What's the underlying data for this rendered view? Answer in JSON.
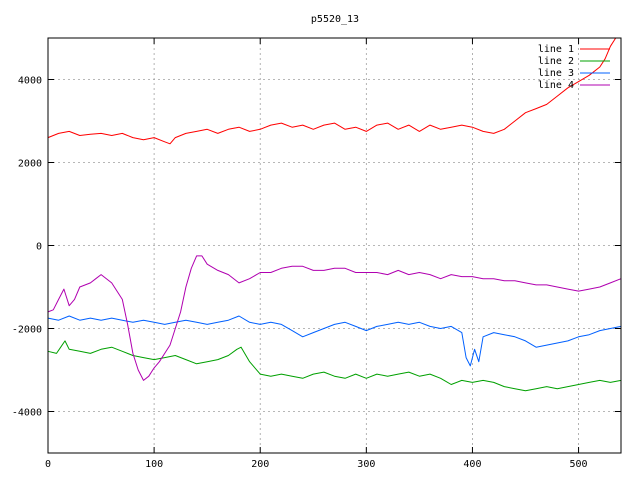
{
  "chart_data": {
    "type": "line",
    "title": "p5520_13",
    "xlabel": "",
    "ylabel": "",
    "xlim": [
      0,
      540
    ],
    "ylim": [
      -5000,
      5000
    ],
    "xticks": [
      0,
      100,
      200,
      300,
      400,
      500
    ],
    "yticks": [
      -4000,
      -2000,
      0,
      2000,
      4000
    ],
    "grid": true,
    "legend_position": "top-right",
    "series": [
      {
        "name": "line 1",
        "color": "#ff0000",
        "points": [
          [
            0,
            2600
          ],
          [
            10,
            2700
          ],
          [
            20,
            2750
          ],
          [
            30,
            2650
          ],
          [
            40,
            2680
          ],
          [
            50,
            2700
          ],
          [
            60,
            2650
          ],
          [
            70,
            2700
          ],
          [
            80,
            2600
          ],
          [
            90,
            2550
          ],
          [
            100,
            2600
          ],
          [
            110,
            2500
          ],
          [
            115,
            2450
          ],
          [
            120,
            2600
          ],
          [
            130,
            2700
          ],
          [
            140,
            2750
          ],
          [
            150,
            2800
          ],
          [
            160,
            2700
          ],
          [
            170,
            2800
          ],
          [
            180,
            2850
          ],
          [
            190,
            2750
          ],
          [
            200,
            2800
          ],
          [
            210,
            2900
          ],
          [
            220,
            2950
          ],
          [
            230,
            2850
          ],
          [
            240,
            2900
          ],
          [
            250,
            2800
          ],
          [
            260,
            2900
          ],
          [
            270,
            2950
          ],
          [
            280,
            2800
          ],
          [
            290,
            2850
          ],
          [
            300,
            2750
          ],
          [
            310,
            2900
          ],
          [
            320,
            2950
          ],
          [
            330,
            2800
          ],
          [
            340,
            2900
          ],
          [
            350,
            2750
          ],
          [
            360,
            2900
          ],
          [
            370,
            2800
          ],
          [
            380,
            2850
          ],
          [
            390,
            2900
          ],
          [
            400,
            2850
          ],
          [
            410,
            2750
          ],
          [
            420,
            2700
          ],
          [
            430,
            2800
          ],
          [
            440,
            3000
          ],
          [
            450,
            3200
          ],
          [
            460,
            3300
          ],
          [
            470,
            3400
          ],
          [
            480,
            3600
          ],
          [
            490,
            3800
          ],
          [
            500,
            3950
          ],
          [
            510,
            4100
          ],
          [
            520,
            4300
          ],
          [
            525,
            4500
          ],
          [
            530,
            4800
          ],
          [
            535,
            5000
          ]
        ]
      },
      {
        "name": "line 2",
        "color": "#00a000",
        "points": [
          [
            0,
            -2550
          ],
          [
            8,
            -2600
          ],
          [
            12,
            -2450
          ],
          [
            16,
            -2300
          ],
          [
            20,
            -2500
          ],
          [
            30,
            -2550
          ],
          [
            40,
            -2600
          ],
          [
            50,
            -2500
          ],
          [
            60,
            -2450
          ],
          [
            70,
            -2550
          ],
          [
            80,
            -2650
          ],
          [
            90,
            -2700
          ],
          [
            100,
            -2750
          ],
          [
            110,
            -2700
          ],
          [
            120,
            -2650
          ],
          [
            130,
            -2750
          ],
          [
            140,
            -2850
          ],
          [
            150,
            -2800
          ],
          [
            160,
            -2750
          ],
          [
            170,
            -2650
          ],
          [
            178,
            -2500
          ],
          [
            182,
            -2450
          ],
          [
            190,
            -2800
          ],
          [
            200,
            -3100
          ],
          [
            210,
            -3150
          ],
          [
            220,
            -3100
          ],
          [
            230,
            -3150
          ],
          [
            240,
            -3200
          ],
          [
            250,
            -3100
          ],
          [
            260,
            -3050
          ],
          [
            270,
            -3150
          ],
          [
            280,
            -3200
          ],
          [
            290,
            -3100
          ],
          [
            300,
            -3200
          ],
          [
            310,
            -3100
          ],
          [
            320,
            -3150
          ],
          [
            330,
            -3100
          ],
          [
            340,
            -3050
          ],
          [
            350,
            -3150
          ],
          [
            360,
            -3100
          ],
          [
            370,
            -3200
          ],
          [
            380,
            -3350
          ],
          [
            390,
            -3250
          ],
          [
            400,
            -3300
          ],
          [
            410,
            -3250
          ],
          [
            420,
            -3300
          ],
          [
            430,
            -3400
          ],
          [
            440,
            -3450
          ],
          [
            450,
            -3500
          ],
          [
            460,
            -3450
          ],
          [
            470,
            -3400
          ],
          [
            480,
            -3450
          ],
          [
            490,
            -3400
          ],
          [
            500,
            -3350
          ],
          [
            510,
            -3300
          ],
          [
            520,
            -3250
          ],
          [
            530,
            -3300
          ],
          [
            540,
            -3250
          ]
        ]
      },
      {
        "name": "line 3",
        "color": "#0060ff",
        "points": [
          [
            0,
            -1750
          ],
          [
            10,
            -1800
          ],
          [
            20,
            -1700
          ],
          [
            30,
            -1800
          ],
          [
            40,
            -1750
          ],
          [
            50,
            -1800
          ],
          [
            60,
            -1750
          ],
          [
            70,
            -1800
          ],
          [
            80,
            -1850
          ],
          [
            90,
            -1800
          ],
          [
            100,
            -1850
          ],
          [
            110,
            -1900
          ],
          [
            120,
            -1850
          ],
          [
            130,
            -1800
          ],
          [
            140,
            -1850
          ],
          [
            150,
            -1900
          ],
          [
            160,
            -1850
          ],
          [
            170,
            -1800
          ],
          [
            180,
            -1700
          ],
          [
            190,
            -1850
          ],
          [
            200,
            -1900
          ],
          [
            210,
            -1850
          ],
          [
            220,
            -1900
          ],
          [
            230,
            -2050
          ],
          [
            240,
            -2200
          ],
          [
            250,
            -2100
          ],
          [
            260,
            -2000
          ],
          [
            270,
            -1900
          ],
          [
            280,
            -1850
          ],
          [
            290,
            -1950
          ],
          [
            300,
            -2050
          ],
          [
            310,
            -1950
          ],
          [
            320,
            -1900
          ],
          [
            330,
            -1850
          ],
          [
            340,
            -1900
          ],
          [
            350,
            -1850
          ],
          [
            360,
            -1950
          ],
          [
            370,
            -2000
          ],
          [
            380,
            -1950
          ],
          [
            390,
            -2100
          ],
          [
            394,
            -2700
          ],
          [
            398,
            -2900
          ],
          [
            402,
            -2500
          ],
          [
            406,
            -2800
          ],
          [
            410,
            -2200
          ],
          [
            420,
            -2100
          ],
          [
            430,
            -2150
          ],
          [
            440,
            -2200
          ],
          [
            450,
            -2300
          ],
          [
            460,
            -2450
          ],
          [
            470,
            -2400
          ],
          [
            480,
            -2350
          ],
          [
            490,
            -2300
          ],
          [
            500,
            -2200
          ],
          [
            510,
            -2150
          ],
          [
            520,
            -2050
          ],
          [
            530,
            -2000
          ],
          [
            540,
            -1950
          ]
        ]
      },
      {
        "name": "line 4",
        "color": "#b000b0",
        "points": [
          [
            0,
            -1600
          ],
          [
            5,
            -1550
          ],
          [
            10,
            -1300
          ],
          [
            15,
            -1050
          ],
          [
            20,
            -1450
          ],
          [
            25,
            -1300
          ],
          [
            30,
            -1000
          ],
          [
            40,
            -900
          ],
          [
            45,
            -800
          ],
          [
            50,
            -700
          ],
          [
            60,
            -900
          ],
          [
            65,
            -1100
          ],
          [
            70,
            -1300
          ],
          [
            75,
            -1900
          ],
          [
            80,
            -2600
          ],
          [
            85,
            -3000
          ],
          [
            90,
            -3250
          ],
          [
            95,
            -3150
          ],
          [
            100,
            -2950
          ],
          [
            105,
            -2800
          ],
          [
            110,
            -2600
          ],
          [
            115,
            -2400
          ],
          [
            120,
            -2000
          ],
          [
            125,
            -1600
          ],
          [
            130,
            -1000
          ],
          [
            135,
            -550
          ],
          [
            140,
            -250
          ],
          [
            145,
            -250
          ],
          [
            150,
            -450
          ],
          [
            160,
            -600
          ],
          [
            170,
            -700
          ],
          [
            180,
            -900
          ],
          [
            190,
            -800
          ],
          [
            200,
            -650
          ],
          [
            210,
            -650
          ],
          [
            220,
            -550
          ],
          [
            230,
            -500
          ],
          [
            240,
            -500
          ],
          [
            250,
            -600
          ],
          [
            260,
            -600
          ],
          [
            270,
            -550
          ],
          [
            280,
            -550
          ],
          [
            290,
            -650
          ],
          [
            300,
            -650
          ],
          [
            310,
            -650
          ],
          [
            320,
            -700
          ],
          [
            330,
            -600
          ],
          [
            340,
            -700
          ],
          [
            350,
            -650
          ],
          [
            360,
            -700
          ],
          [
            370,
            -800
          ],
          [
            380,
            -700
          ],
          [
            390,
            -750
          ],
          [
            400,
            -750
          ],
          [
            410,
            -800
          ],
          [
            420,
            -800
          ],
          [
            430,
            -850
          ],
          [
            440,
            -850
          ],
          [
            450,
            -900
          ],
          [
            460,
            -950
          ],
          [
            470,
            -950
          ],
          [
            480,
            -1000
          ],
          [
            490,
            -1050
          ],
          [
            500,
            -1100
          ],
          [
            510,
            -1050
          ],
          [
            520,
            -1000
          ],
          [
            530,
            -900
          ],
          [
            540,
            -800
          ]
        ]
      }
    ]
  }
}
